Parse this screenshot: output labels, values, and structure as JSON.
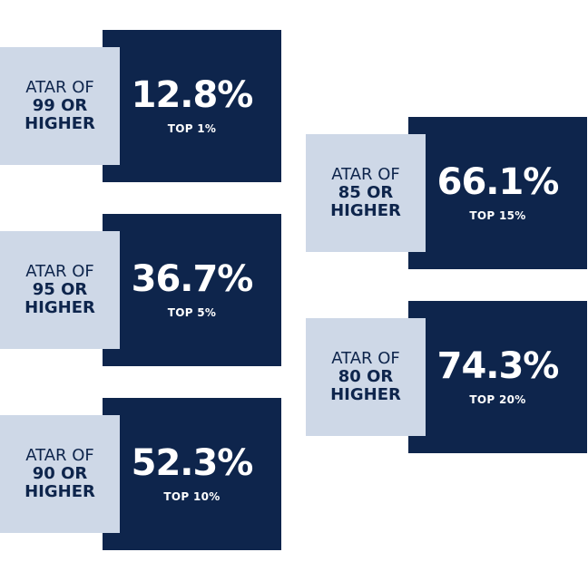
{
  "colors": {
    "navy": "#0e254c",
    "light_blue_grey": "#ced8e7",
    "background": "#ffffff"
  },
  "stats": [
    {
      "label_line1": "ATAR OF",
      "label_line2": "99 OR",
      "label_line3": "HIGHER",
      "percent": "12.8%",
      "rank": "TOP 1%"
    },
    {
      "label_line1": "ATAR OF",
      "label_line2": "95 OR",
      "label_line3": "HIGHER",
      "percent": "36.7%",
      "rank": "TOP 5%"
    },
    {
      "label_line1": "ATAR OF",
      "label_line2": "90 OR",
      "label_line3": "HIGHER",
      "percent": "52.3%",
      "rank": "TOP 10%"
    },
    {
      "label_line1": "ATAR OF",
      "label_line2": "85 OR",
      "label_line3": "HIGHER",
      "percent": "66.1%",
      "rank": "TOP 15%"
    },
    {
      "label_line1": "ATAR OF",
      "label_line2": "80 OR",
      "label_line3": "HIGHER",
      "percent": "74.3%",
      "rank": "TOP 20%"
    }
  ]
}
